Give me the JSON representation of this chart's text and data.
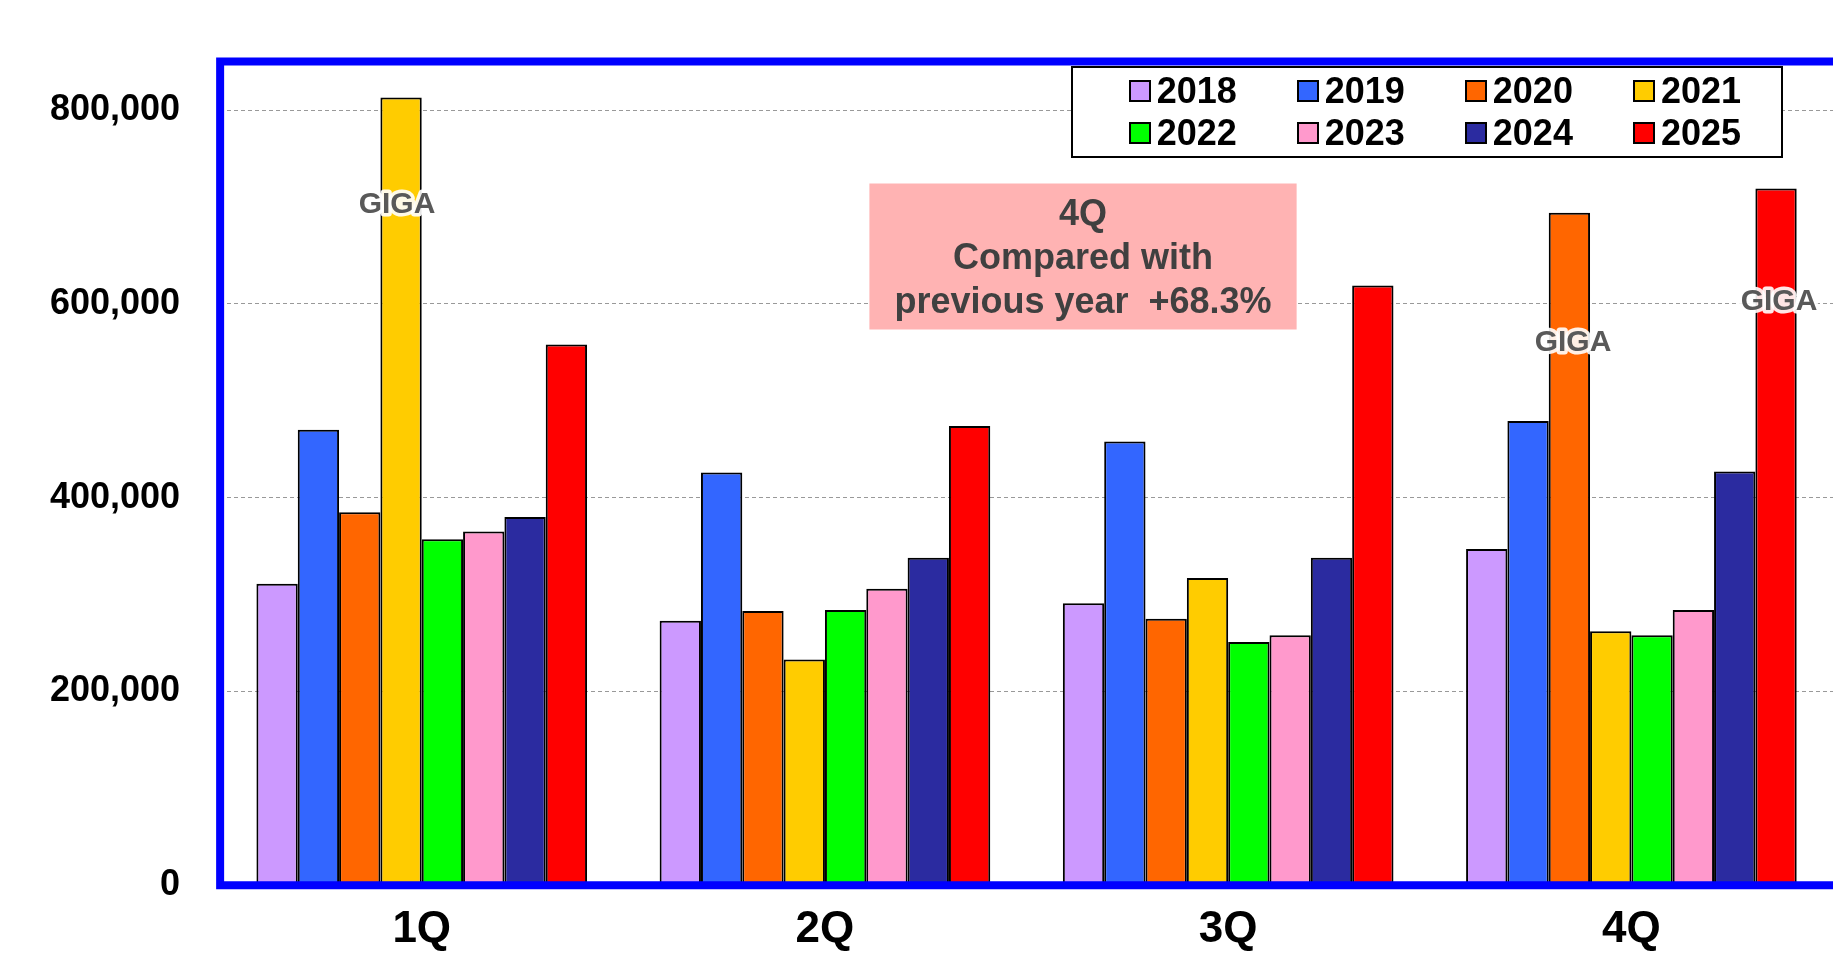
{
  "chart_data": {
    "type": "bar",
    "categories": [
      "1Q",
      "2Q",
      "3Q",
      "4Q"
    ],
    "series": [
      {
        "name": "2018",
        "color": "#cc99ff",
        "values": [
          311000,
          273000,
          291000,
          347000
        ]
      },
      {
        "name": "2019",
        "color": "#3366ff",
        "values": [
          470000,
          426000,
          458000,
          479000
        ]
      },
      {
        "name": "2020",
        "color": "#ff6600",
        "values": [
          385000,
          283000,
          275000,
          694000
        ]
      },
      {
        "name": "2021",
        "color": "#ffcc00",
        "values": [
          813000,
          233000,
          317000,
          262000
        ]
      },
      {
        "name": "2022",
        "color": "#00ff00",
        "values": [
          357000,
          284000,
          251000,
          258000
        ]
      },
      {
        "name": "2023",
        "color": "#ff99cc",
        "values": [
          365000,
          306000,
          258000,
          284000
        ]
      },
      {
        "name": "2024",
        "color": "#2b2ba0",
        "values": [
          380000,
          338000,
          338000,
          427000
        ]
      },
      {
        "name": "2025",
        "color": "#ff0000",
        "values": [
          558000,
          474000,
          619000,
          719000
        ]
      }
    ],
    "ylim": [
      0,
      850000
    ],
    "yticks": [
      0,
      {
        "value": 200000,
        "label": "200,000"
      },
      {
        "value": 400000,
        "label": "400,000"
      },
      {
        "value": 600000,
        "label": "600,000"
      },
      {
        "value": 800000,
        "label": "800,000"
      }
    ],
    "grid": "y",
    "legend": "top right",
    "annotations": [
      "GIGA",
      "GIGA",
      "GIGA",
      "4Q\nCompared with\nprevious year  +68.3%"
    ]
  }
}
